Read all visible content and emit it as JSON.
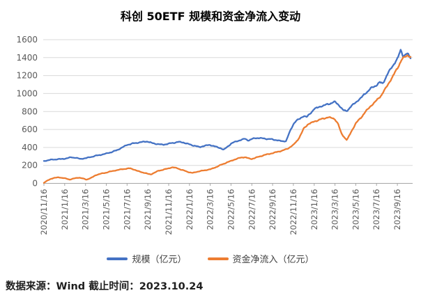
{
  "title": "科创 50ETF 规模和资金净流入变动",
  "footer": {
    "text": "数据来源：Wind 截止时间：2023.10.24"
  },
  "chart_data": {
    "type": "line",
    "title": "科创 50ETF 规模和资金净流入变动",
    "xlabel": "",
    "ylabel": "",
    "ylim": [
      0,
      1600
    ],
    "y_ticks": [
      0,
      200,
      400,
      600,
      800,
      1000,
      1200,
      1400,
      1600
    ],
    "x_tick_labels": [
      "2020/11/16",
      "2021/1/16",
      "2021/3/16",
      "2021/5/16",
      "2021/7/16",
      "2021/9/16",
      "2021/11/16",
      "2022/1/16",
      "2022/3/16",
      "2022/5/16",
      "2022/7/16",
      "2022/9/16",
      "2022/11/16",
      "2023/1/16",
      "2023/3/16",
      "2023/5/16",
      "2023/7/16",
      "2023/9/16"
    ],
    "x_tick_interval_months": 2,
    "x_start_date": "2020/11/16",
    "x_end_date": "2023/10/24",
    "x_total_months": 35.27,
    "grid": true,
    "legend_position": "bottom",
    "grid_color": "#D9D9D9",
    "axis_color": "#A6A6A6",
    "tick_label_color": "#595959",
    "series": [
      {
        "id": "scale",
        "name": "规模（亿元）",
        "color": "#4472C4",
        "anchors_months_values": [
          [
            0,
            248
          ],
          [
            0.6,
            262
          ],
          [
            1,
            266
          ],
          [
            1.5,
            270
          ],
          [
            2,
            274
          ],
          [
            2.6,
            290
          ],
          [
            3,
            286
          ],
          [
            3.5,
            272
          ],
          [
            4,
            280
          ],
          [
            4.6,
            296
          ],
          [
            5,
            308
          ],
          [
            5.5,
            318
          ],
          [
            6,
            332
          ],
          [
            6.5,
            348
          ],
          [
            7,
            368
          ],
          [
            7.5,
            398
          ],
          [
            8,
            428
          ],
          [
            8.5,
            443
          ],
          [
            9,
            452
          ],
          [
            9.5,
            462
          ],
          [
            10,
            466
          ],
          [
            10.4,
            448
          ],
          [
            11,
            436
          ],
          [
            11.5,
            430
          ],
          [
            12,
            442
          ],
          [
            12.5,
            452
          ],
          [
            13,
            462
          ],
          [
            13.4,
            455
          ],
          [
            14,
            434
          ],
          [
            14.5,
            418
          ],
          [
            15,
            404
          ],
          [
            15.5,
            420
          ],
          [
            16,
            428
          ],
          [
            16.4,
            412
          ],
          [
            17,
            392
          ],
          [
            17.3,
            374
          ],
          [
            17.7,
            412
          ],
          [
            18,
            442
          ],
          [
            18.5,
            468
          ],
          [
            19,
            484
          ],
          [
            19.3,
            497
          ],
          [
            19.7,
            478
          ],
          [
            20,
            492
          ],
          [
            20.3,
            505
          ],
          [
            21,
            502
          ],
          [
            21.5,
            494
          ],
          [
            22,
            490
          ],
          [
            22.5,
            478
          ],
          [
            23,
            468
          ],
          [
            23.3,
            472
          ],
          [
            23.6,
            560
          ],
          [
            24,
            660
          ],
          [
            24.3,
            700
          ],
          [
            24.6,
            718
          ],
          [
            25,
            752
          ],
          [
            25.3,
            738
          ],
          [
            26,
            828
          ],
          [
            26.5,
            852
          ],
          [
            27,
            870
          ],
          [
            27.5,
            888
          ],
          [
            28,
            908
          ],
          [
            28.4,
            868
          ],
          [
            28.8,
            815
          ],
          [
            29.1,
            802
          ],
          [
            29.5,
            852
          ],
          [
            30,
            902
          ],
          [
            30.5,
            952
          ],
          [
            31,
            1010
          ],
          [
            31.5,
            1062
          ],
          [
            32,
            1092
          ],
          [
            32.3,
            1128
          ],
          [
            32.6,
            1108
          ],
          [
            33,
            1208
          ],
          [
            33.5,
            1298
          ],
          [
            34,
            1388
          ],
          [
            34.35,
            1487
          ],
          [
            34.55,
            1412
          ],
          [
            34.8,
            1442
          ],
          [
            35,
            1438
          ],
          [
            35.27,
            1396
          ]
        ]
      },
      {
        "id": "net-inflow",
        "name": "资金净流入（亿元）",
        "color": "#ED7D31",
        "anchors_months_values": [
          [
            0,
            6
          ],
          [
            0.3,
            28
          ],
          [
            0.6,
            48
          ],
          [
            1,
            60
          ],
          [
            1.4,
            68
          ],
          [
            1.8,
            60
          ],
          [
            2.2,
            52
          ],
          [
            2.5,
            42
          ],
          [
            3,
            58
          ],
          [
            3.4,
            64
          ],
          [
            3.8,
            52
          ],
          [
            4.1,
            42
          ],
          [
            4.5,
            58
          ],
          [
            5,
            92
          ],
          [
            5.5,
            108
          ],
          [
            6,
            120
          ],
          [
            6.5,
            135
          ],
          [
            7,
            146
          ],
          [
            7.5,
            158
          ],
          [
            8,
            163
          ],
          [
            8.3,
            168
          ],
          [
            8.7,
            152
          ],
          [
            9,
            138
          ],
          [
            9.5,
            122
          ],
          [
            10,
            106
          ],
          [
            10.3,
            100
          ],
          [
            10.7,
            122
          ],
          [
            11,
            140
          ],
          [
            11.5,
            152
          ],
          [
            12,
            168
          ],
          [
            12.4,
            178
          ],
          [
            12.8,
            170
          ],
          [
            13.2,
            152
          ],
          [
            13.6,
            138
          ],
          [
            14,
            122
          ],
          [
            14.3,
            116
          ],
          [
            14.7,
            128
          ],
          [
            15,
            136
          ],
          [
            15.5,
            146
          ],
          [
            16,
            156
          ],
          [
            16.5,
            178
          ],
          [
            17,
            204
          ],
          [
            17.5,
            228
          ],
          [
            18,
            250
          ],
          [
            18.5,
            272
          ],
          [
            19,
            288
          ],
          [
            19.3,
            292
          ],
          [
            19.7,
            278
          ],
          [
            20,
            272
          ],
          [
            20.5,
            290
          ],
          [
            21,
            308
          ],
          [
            21.5,
            324
          ],
          [
            22,
            336
          ],
          [
            22.5,
            352
          ],
          [
            23,
            366
          ],
          [
            23.5,
            390
          ],
          [
            24,
            428
          ],
          [
            24.4,
            480
          ],
          [
            24.8,
            560
          ],
          [
            25,
            612
          ],
          [
            25.4,
            658
          ],
          [
            26,
            688
          ],
          [
            26.5,
            708
          ],
          [
            27,
            726
          ],
          [
            27.4,
            736
          ],
          [
            27.8,
            724
          ],
          [
            28,
            714
          ],
          [
            28.3,
            662
          ],
          [
            28.6,
            560
          ],
          [
            29,
            498
          ],
          [
            29.15,
            482
          ],
          [
            29.5,
            560
          ],
          [
            30,
            668
          ],
          [
            30.5,
            732
          ],
          [
            31,
            806
          ],
          [
            31.5,
            868
          ],
          [
            32,
            922
          ],
          [
            32.5,
            988
          ],
          [
            33,
            1082
          ],
          [
            33.5,
            1178
          ],
          [
            34,
            1282
          ],
          [
            34.4,
            1372
          ],
          [
            34.7,
            1408
          ],
          [
            35,
            1428
          ],
          [
            35.27,
            1402
          ]
        ]
      }
    ]
  }
}
